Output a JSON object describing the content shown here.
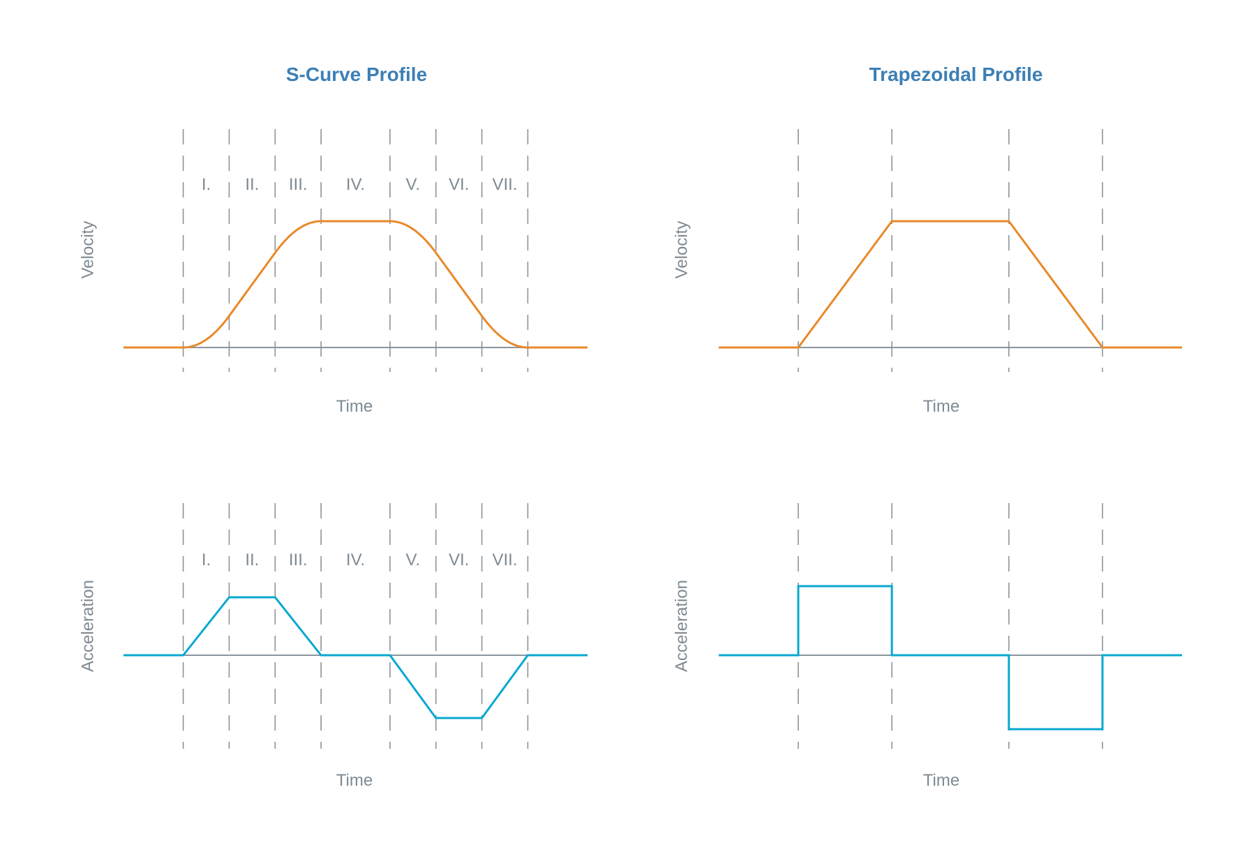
{
  "colors": {
    "title": "#3c7fb5",
    "velocity": "#e8892a",
    "acceleration": "#0aa8d0",
    "axis": "#8a949c",
    "guides": "#8a949c",
    "text": "#7d8a93"
  },
  "chart_data": [
    {
      "type": "line",
      "title": "S-Curve Profile",
      "panel": "velocity",
      "ylabel": "Velocity",
      "xlabel": "Time",
      "phases": [
        "I.",
        "II.",
        "III.",
        "IV.",
        "V.",
        "VI.",
        "VII."
      ],
      "boundaries": [
        0,
        1,
        2,
        3,
        4.5,
        5.5,
        6.5,
        7.5
      ],
      "xlim": [
        -1.3,
        8.8
      ],
      "ylim": [
        0,
        1
      ],
      "peak_velocity": 1,
      "grid": "dashed vertical lines at phase boundaries"
    },
    {
      "type": "line",
      "title": "",
      "panel": "acceleration",
      "ylabel": "Acceleration",
      "xlabel": "Time",
      "phases": [
        "I.",
        "II.",
        "III.",
        "IV.",
        "V.",
        "VI.",
        "VII."
      ],
      "boundaries": [
        0,
        1,
        2,
        3,
        4.5,
        5.5,
        6.5,
        7.5
      ],
      "xlim": [
        -1.3,
        8.8
      ],
      "x": [
        -1.3,
        0,
        1,
        2,
        3,
        4.5,
        5.5,
        6.5,
        7.5,
        8.8
      ],
      "y": [
        0,
        0,
        1,
        1,
        0,
        0,
        -1,
        -1,
        0,
        0
      ],
      "ylim": [
        -1,
        1
      ]
    },
    {
      "type": "line",
      "title": "Trapezoidal Profile",
      "panel": "velocity",
      "ylabel": "Velocity",
      "xlabel": "Time",
      "boundaries": [
        0,
        1,
        2.25,
        3.25
      ],
      "xlim": [
        -0.85,
        4.1
      ],
      "x": [
        -0.85,
        0,
        1,
        2.25,
        3.25,
        4.1
      ],
      "y": [
        0,
        0,
        1,
        1,
        0,
        0
      ],
      "ylim": [
        0,
        1
      ]
    },
    {
      "type": "line",
      "title": "",
      "panel": "acceleration",
      "ylabel": "Acceleration",
      "xlabel": "Time",
      "boundaries": [
        0,
        1,
        2.25,
        3.25
      ],
      "xlim": [
        -0.85,
        4.1
      ],
      "x": [
        -0.85,
        0,
        0,
        1,
        1,
        2.25,
        2.25,
        3.25,
        3.25,
        4.1
      ],
      "y": [
        0,
        0,
        1,
        1,
        0,
        0,
        -1,
        -1,
        0,
        0
      ],
      "ylim": [
        -1,
        1
      ]
    }
  ]
}
